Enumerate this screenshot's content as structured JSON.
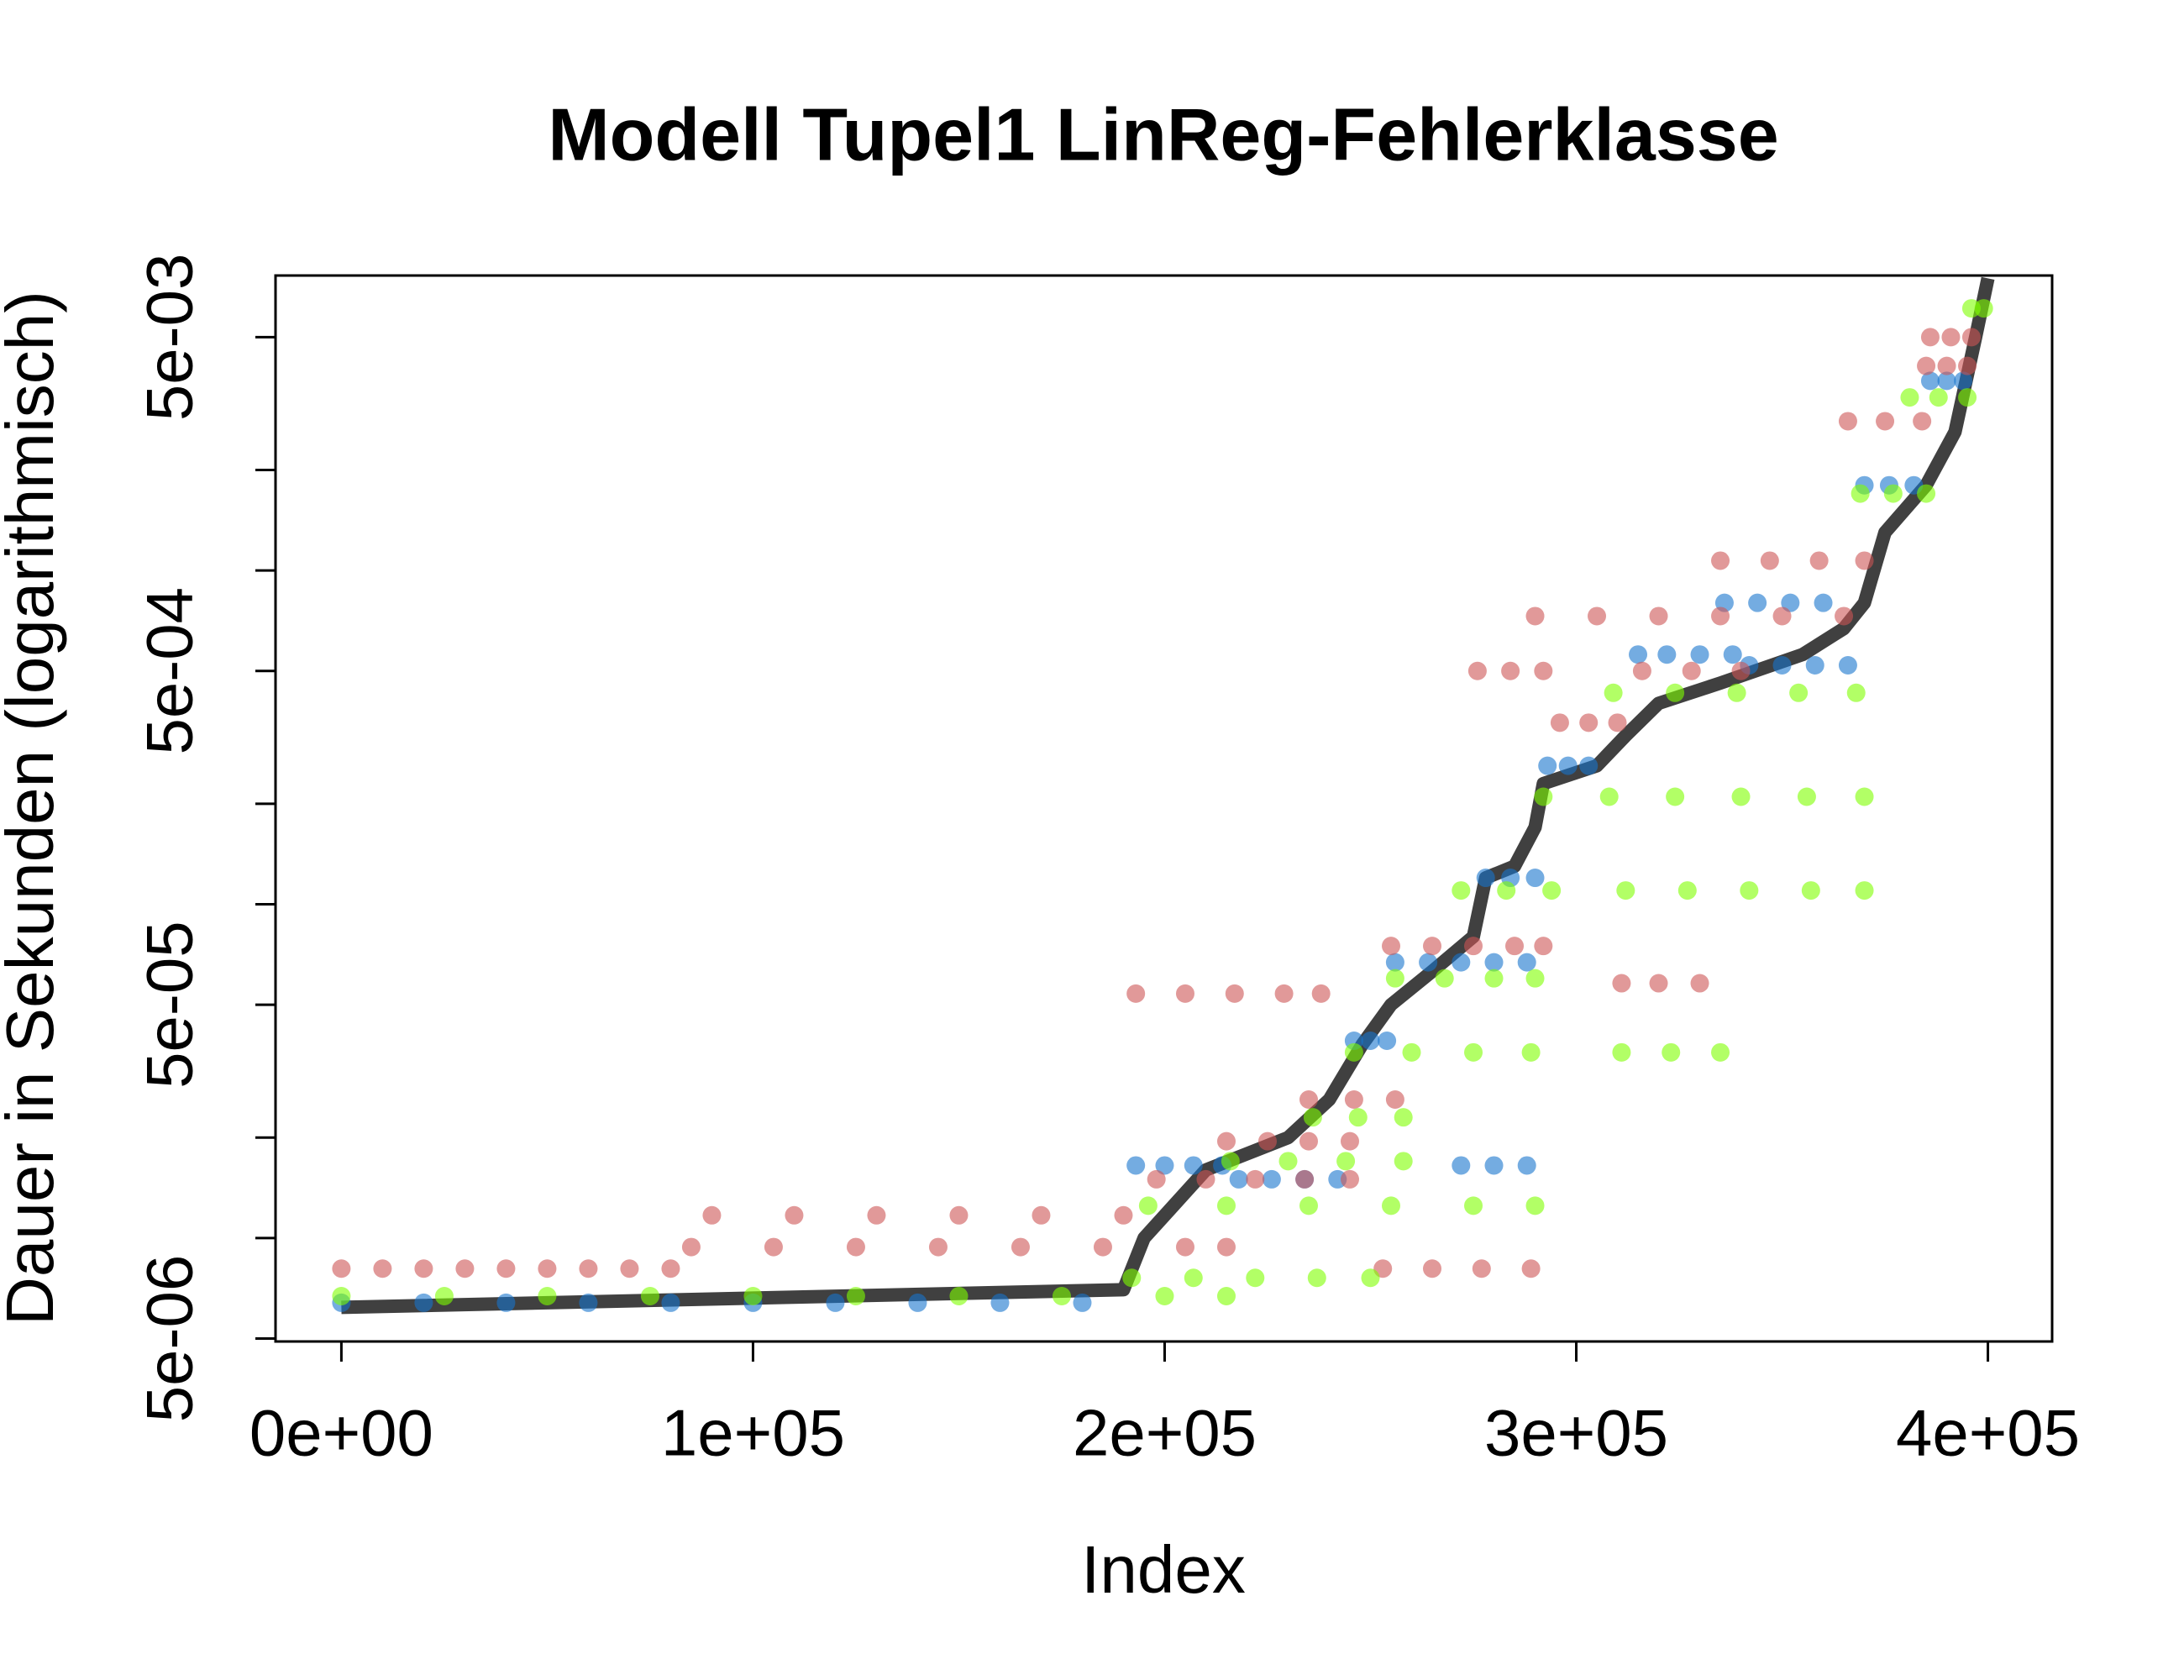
{
  "chart_data": {
    "type": "scatter",
    "title": "Modell Tupel1 LinReg-Fehlerklasse",
    "x_label": "Index",
    "y_label": "Dauer in Sekunden (logarithmisch)",
    "log_y": true,
    "xlim": [
      -16000,
      415600
    ],
    "ylim": [
      4.9e-06,
      0.00765
    ],
    "xticks": [
      {
        "value": 0,
        "label": "0e+00"
      },
      {
        "value": 100000,
        "label": "1e+05"
      },
      {
        "value": 200000,
        "label": "2e+05"
      },
      {
        "value": 300000,
        "label": "3e+05"
      },
      {
        "value": 400000,
        "label": "4e+05"
      }
    ],
    "yticks": [
      {
        "value": 5e-06,
        "label": "5e-06"
      },
      {
        "value": 1e-05,
        "label": null
      },
      {
        "value": 2e-05,
        "label": null
      },
      {
        "value": 5e-05,
        "label": "5e-05"
      },
      {
        "value": 0.0001,
        "label": null
      },
      {
        "value": 0.0002,
        "label": null
      },
      {
        "value": 0.0005,
        "label": "5e-04"
      },
      {
        "value": 0.001,
        "label": null
      },
      {
        "value": 0.002,
        "label": null
      },
      {
        "value": 0.005,
        "label": "5e-03"
      }
    ],
    "series": [
      {
        "style": "line",
        "color": "#404040",
        "x": [
          0,
          190000,
          195000,
          210000,
          230000,
          240000,
          248000,
          255000,
          265000,
          275000,
          278000,
          285000,
          290000,
          292000,
          305000,
          312000,
          320000,
          335000,
          355000,
          365000,
          370000,
          375000,
          385000,
          392000,
          397000,
          400000
        ],
        "values": [
          6.2e-06,
          7e-06,
          1e-05,
          1.6e-05,
          2e-05,
          2.6e-05,
          3.8e-05,
          5e-05,
          6.3e-05,
          8e-05,
          0.00012,
          0.00013,
          0.00017,
          0.00023,
          0.00026,
          0.00032,
          0.0004,
          0.00046,
          0.00056,
          0.00067,
          0.0008,
          0.0013,
          0.0018,
          0.0026,
          0.005,
          0.0075
        ]
      },
      {
        "style": "points",
        "color": "#1874CD",
        "x": [
          0,
          20000,
          40000,
          60000,
          80000,
          100000,
          120000,
          140000,
          160000,
          180000,
          193000,
          200000,
          207000,
          214000,
          218000,
          226000,
          234000,
          242000,
          246000,
          250000,
          254000,
          256000,
          264000,
          272000,
          280000,
          288000,
          278000,
          284000,
          290000,
          293000,
          298000,
          303000,
          315000,
          322000,
          330000,
          338000,
          336000,
          344000,
          352000,
          360000,
          272000,
          280000,
          288000,
          342000,
          350000,
          358000,
          366000,
          370000,
          376000,
          382000,
          386000,
          390000,
          394000
        ],
        "values": [
          6.4e-06,
          6.4e-06,
          6.4e-06,
          6.4e-06,
          6.4e-06,
          6.4e-06,
          6.4e-06,
          6.4e-06,
          6.4e-06,
          6.4e-06,
          1.65e-05,
          1.65e-05,
          1.65e-05,
          1.65e-05,
          1.5e-05,
          1.5e-05,
          1.5e-05,
          1.5e-05,
          3.9e-05,
          3.9e-05,
          3.9e-05,
          6.7e-05,
          6.7e-05,
          6.7e-05,
          6.7e-05,
          6.7e-05,
          0.00012,
          0.00012,
          0.00012,
          0.00026,
          0.00026,
          0.00026,
          0.00056,
          0.00056,
          0.00056,
          0.00056,
          0.0008,
          0.0008,
          0.0008,
          0.0008,
          1.65e-05,
          1.65e-05,
          1.65e-05,
          0.00052,
          0.00052,
          0.00052,
          0.00052,
          0.0018,
          0.0018,
          0.0018,
          0.0037,
          0.0037,
          0.0037
        ]
      },
      {
        "style": "points",
        "color": "#CD5555",
        "x": [
          0,
          10000,
          20000,
          30000,
          40000,
          50000,
          60000,
          70000,
          80000,
          85000,
          105000,
          125000,
          145000,
          165000,
          185000,
          205000,
          215000,
          90000,
          110000,
          130000,
          150000,
          170000,
          190000,
          193000,
          205000,
          217000,
          229000,
          238000,
          198000,
          210000,
          222000,
          234000,
          245000,
          215000,
          225000,
          235000,
          245000,
          235000,
          246000,
          256000,
          255000,
          265000,
          275000,
          285000,
          292000,
          276000,
          284000,
          292000,
          296000,
          303000,
          310000,
          290000,
          305000,
          320000,
          335000,
          350000,
          365000,
          316000,
          328000,
          340000,
          335000,
          347000,
          359000,
          370000,
          366000,
          375000,
          384000,
          385000,
          390000,
          395000,
          386000,
          391000,
          396000,
          311000,
          320000,
          330000,
          253000,
          265000,
          277000,
          289000
        ],
        "values": [
          8.1e-06,
          8.1e-06,
          8.1e-06,
          8.1e-06,
          8.1e-06,
          8.1e-06,
          8.1e-06,
          8.1e-06,
          8.1e-06,
          9.4e-06,
          9.4e-06,
          9.4e-06,
          9.4e-06,
          9.4e-06,
          9.4e-06,
          9.4e-06,
          9.4e-06,
          1.17e-05,
          1.17e-05,
          1.17e-05,
          1.17e-05,
          1.17e-05,
          1.17e-05,
          5.4e-05,
          5.4e-05,
          5.4e-05,
          5.4e-05,
          5.4e-05,
          1.5e-05,
          1.5e-05,
          1.5e-05,
          1.5e-05,
          1.5e-05,
          1.95e-05,
          1.95e-05,
          1.95e-05,
          1.95e-05,
          2.6e-05,
          2.6e-05,
          2.6e-05,
          7.5e-05,
          7.5e-05,
          7.5e-05,
          7.5e-05,
          7.5e-05,
          0.0005,
          0.0005,
          0.0005,
          0.00035,
          0.00035,
          0.00035,
          0.00073,
          0.00073,
          0.00073,
          0.00073,
          0.00073,
          0.00073,
          0.0005,
          0.0005,
          0.0005,
          0.00107,
          0.00107,
          0.00107,
          0.00107,
          0.0028,
          0.0028,
          0.0028,
          0.0041,
          0.0041,
          0.0041,
          0.005,
          0.005,
          0.005,
          5.8e-05,
          5.8e-05,
          5.8e-05,
          8.1e-06,
          8.1e-06,
          8.1e-06,
          8.1e-06
        ]
      },
      {
        "style": "points",
        "color": "#7FFF00",
        "x": [
          0,
          25000,
          50000,
          75000,
          100000,
          125000,
          150000,
          175000,
          200000,
          215000,
          192000,
          207000,
          222000,
          237000,
          250000,
          196000,
          215000,
          235000,
          255000,
          275000,
          290000,
          216000,
          230000,
          244000,
          258000,
          236000,
          247000,
          258000,
          246000,
          260000,
          275000,
          289000,
          256000,
          268000,
          280000,
          290000,
          272000,
          283000,
          294000,
          292000,
          308000,
          324000,
          340000,
          356000,
          370000,
          312000,
          327000,
          342000,
          357000,
          370000,
          309000,
          324000,
          339000,
          354000,
          368000,
          311000,
          323000,
          335000,
          369000,
          377000,
          385000,
          381000,
          388000,
          395000,
          396000,
          399000
        ],
        "values": [
          6.7e-06,
          6.7e-06,
          6.7e-06,
          6.7e-06,
          6.7e-06,
          6.7e-06,
          6.7e-06,
          6.7e-06,
          6.7e-06,
          6.7e-06,
          7.6e-06,
          7.6e-06,
          7.6e-06,
          7.6e-06,
          7.6e-06,
          1.25e-05,
          1.25e-05,
          1.25e-05,
          1.25e-05,
          1.25e-05,
          1.25e-05,
          1.7e-05,
          1.7e-05,
          1.7e-05,
          1.7e-05,
          2.3e-05,
          2.3e-05,
          2.3e-05,
          3.6e-05,
          3.6e-05,
          3.6e-05,
          3.6e-05,
          6e-05,
          6e-05,
          6e-05,
          6e-05,
          0.00011,
          0.00011,
          0.00011,
          0.00021,
          0.00021,
          0.00021,
          0.00021,
          0.00021,
          0.00021,
          0.00011,
          0.00011,
          0.00011,
          0.00011,
          0.00011,
          0.00043,
          0.00043,
          0.00043,
          0.00043,
          0.00043,
          3.6e-05,
          3.6e-05,
          3.6e-05,
          0.0017,
          0.0017,
          0.0017,
          0.0033,
          0.0033,
          0.0033,
          0.0061,
          0.0061
        ]
      }
    ]
  }
}
